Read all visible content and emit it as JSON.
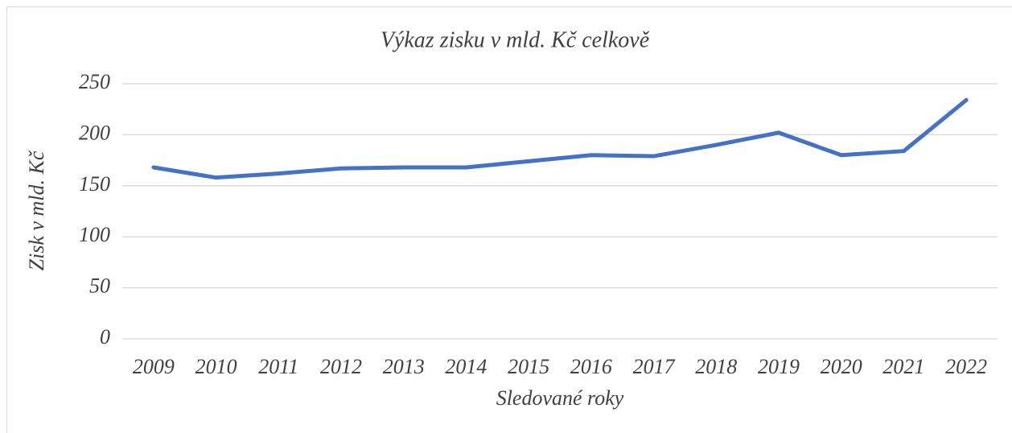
{
  "chart_data": {
    "type": "line",
    "title": "Výkaz zisku v mld. Kč celkově",
    "x_label": "Sledované roky",
    "y_label": "Zisk v mld. Kč",
    "categories": [
      "2009",
      "2010",
      "2011",
      "2012",
      "2013",
      "2014",
      "2015",
      "2016",
      "2017",
      "2018",
      "2019",
      "2020",
      "2021",
      "2022"
    ],
    "series": [
      {
        "name": "Zisk",
        "color": "#4472c4",
        "values": [
          168,
          158,
          162,
          167,
          168,
          168,
          174,
          180,
          179,
          190,
          202,
          180,
          184,
          234
        ]
      }
    ],
    "ylim": [
      0,
      250
    ],
    "yticks": [
      0,
      50,
      100,
      150,
      200,
      250
    ],
    "grid": true
  }
}
